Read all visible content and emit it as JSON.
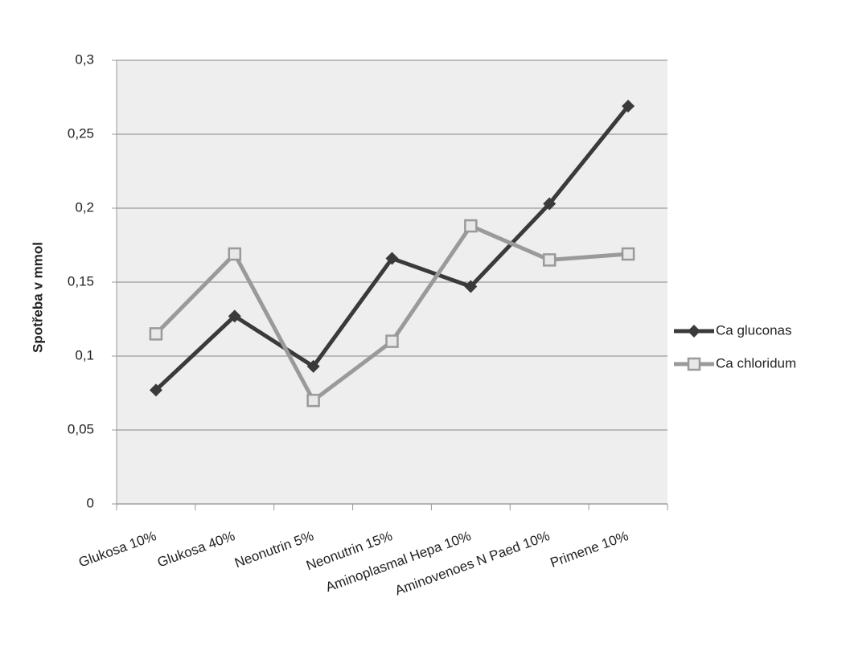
{
  "chart_data": {
    "type": "line",
    "y_label": "Spotřeba v mmol",
    "categories": [
      "Glukosa 10%",
      "Glukosa 40%",
      "Neonutrin 5%",
      "Neonutrin 15%",
      "Aminoplasmal Hepa 10%",
      "Aminovenoes N Paed 10%",
      "Primene 10%"
    ],
    "series": [
      {
        "name": "Ca gluconas",
        "color": "#3a3a3a",
        "marker": "diamond",
        "values": [
          0.077,
          0.127,
          0.093,
          0.166,
          0.147,
          0.203,
          0.269
        ]
      },
      {
        "name": "Ca chloridum",
        "color": "#9a9a9a",
        "marker": "square",
        "values": [
          0.115,
          0.169,
          0.07,
          0.11,
          0.188,
          0.165,
          0.169
        ]
      }
    ],
    "ylim": [
      0,
      0.3
    ],
    "yticks": [
      0,
      {
        "value": 0.05,
        "label": "0,05"
      },
      {
        "value": 0.1,
        "label": "0,1"
      },
      {
        "value": 0.15,
        "label": "0,15"
      },
      {
        "value": 0.2,
        "label": "0,2"
      },
      {
        "value": 0.25,
        "label": "0,25"
      },
      {
        "value": 0.3,
        "label": "0,3"
      }
    ],
    "grid": true,
    "legend": "right"
  }
}
